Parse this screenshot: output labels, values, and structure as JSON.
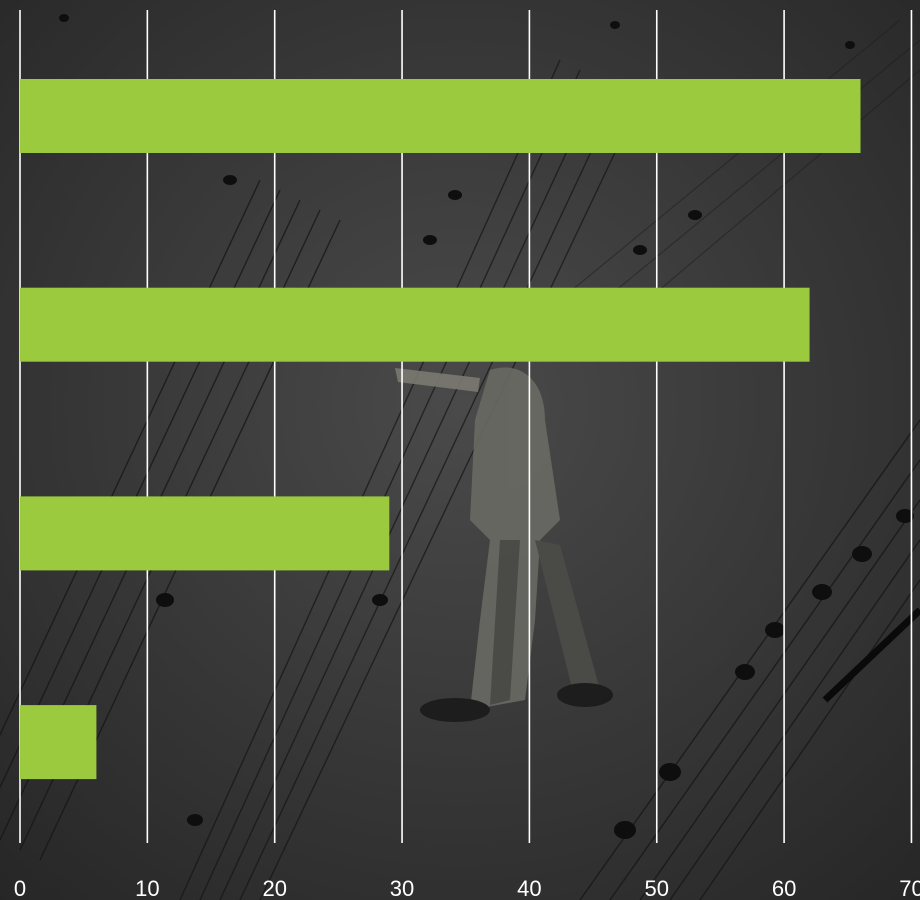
{
  "chart_data": {
    "type": "bar",
    "orientation": "horizontal",
    "title": "",
    "xlabel": "",
    "ylabel": "",
    "categories": [
      "",
      "",
      "",
      ""
    ],
    "values": [
      66,
      62,
      29,
      6
    ],
    "xlim": [
      0,
      70
    ],
    "x_ticks": [
      "0",
      "10",
      "20",
      "30",
      "40",
      "50",
      "60",
      "70"
    ],
    "grid": "vertical",
    "legend": "none",
    "colors": {
      "bar": "#9bca3e",
      "gridline": "#ffffff",
      "tick_text": "#ffffff",
      "background": "#2e2e2e"
    }
  },
  "background": {
    "icon": "sheet-music-photo-with-figurine"
  }
}
